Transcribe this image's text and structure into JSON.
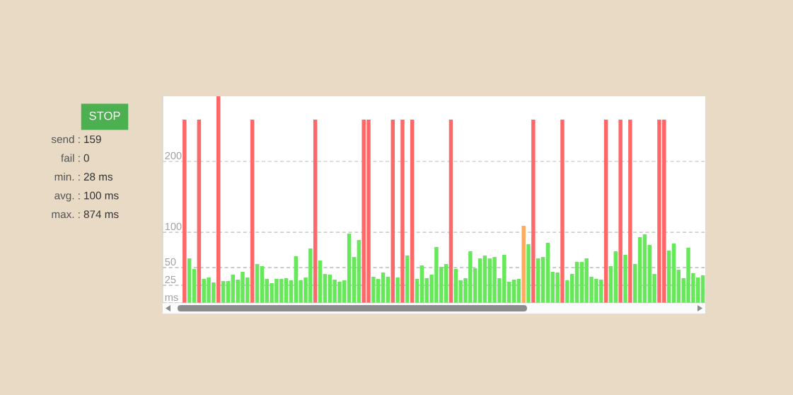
{
  "chart_data": {
    "type": "bar",
    "categories": [
      null,
      null,
      null,
      null,
      null,
      null,
      null,
      null,
      null,
      null,
      null,
      null,
      null,
      null,
      null,
      null,
      null,
      null,
      null,
      null,
      null,
      null,
      null,
      null,
      null,
      null,
      null,
      null,
      null,
      null,
      null,
      null,
      null,
      null,
      null,
      null,
      null,
      null,
      null,
      null,
      null,
      null,
      null,
      null,
      null,
      null,
      null,
      null,
      null,
      null,
      null,
      null,
      null,
      null,
      null,
      null,
      null,
      null,
      null,
      null,
      null,
      null,
      null,
      null,
      null,
      null,
      null,
      null,
      null,
      null,
      null,
      null,
      null,
      null,
      null,
      null,
      null,
      null,
      null,
      null,
      null,
      null,
      null,
      null,
      null,
      null,
      null,
      null,
      null,
      null,
      null,
      null,
      null,
      null,
      null,
      null,
      null,
      null,
      null,
      null,
      null,
      null,
      null,
      null,
      null,
      null,
      null,
      null,
      null,
      null,
      null,
      null
    ],
    "values": [
      null,
      null,
      null,
      null,
      259,
      63,
      48,
      259,
      34,
      36,
      29,
      292,
      31,
      31,
      40,
      33,
      44,
      36,
      259,
      55,
      52,
      34,
      28,
      34,
      34,
      35,
      32,
      66,
      32,
      36,
      77,
      259,
      60,
      41,
      40,
      33,
      30,
      32,
      98,
      65,
      89,
      259,
      259,
      37,
      34,
      43,
      37,
      259,
      36,
      259,
      67,
      259,
      34,
      53,
      35,
      40,
      79,
      51,
      55,
      259,
      48,
      32,
      35,
      73,
      49,
      63,
      67,
      63,
      65,
      35,
      68,
      30,
      33,
      34,
      109,
      83,
      259,
      63,
      65,
      85,
      44,
      43,
      259,
      32,
      41,
      58,
      58,
      63,
      37,
      34,
      33,
      259,
      52,
      73,
      259,
      68,
      259,
      55,
      93,
      97,
      82,
      41,
      259,
      259,
      74,
      84,
      47,
      35,
      78,
      42,
      36,
      39
    ],
    "colors": [
      "#66e85a",
      "#66e85a",
      "#66e85a",
      "#66e85a",
      "#ff6868",
      "#66e85a",
      "#66e85a",
      "#ff6868",
      "#66e85a",
      "#66e85a",
      "#66e85a",
      "#ff6868",
      "#66e85a",
      "#66e85a",
      "#66e85a",
      "#66e85a",
      "#66e85a",
      "#66e85a",
      "#ff6868",
      "#66e85a",
      "#66e85a",
      "#66e85a",
      "#66e85a",
      "#66e85a",
      "#66e85a",
      "#66e85a",
      "#66e85a",
      "#66e85a",
      "#66e85a",
      "#66e85a",
      "#66e85a",
      "#ff6868",
      "#66e85a",
      "#66e85a",
      "#66e85a",
      "#66e85a",
      "#66e85a",
      "#66e85a",
      "#66e85a",
      "#66e85a",
      "#66e85a",
      "#ff6868",
      "#ff6868",
      "#66e85a",
      "#66e85a",
      "#66e85a",
      "#66e85a",
      "#ff6868",
      "#66e85a",
      "#ff6868",
      "#66e85a",
      "#ff6868",
      "#66e85a",
      "#66e85a",
      "#66e85a",
      "#66e85a",
      "#66e85a",
      "#66e85a",
      "#66e85a",
      "#ff6868",
      "#66e85a",
      "#66e85a",
      "#66e85a",
      "#66e85a",
      "#66e85a",
      "#66e85a",
      "#66e85a",
      "#66e85a",
      "#66e85a",
      "#66e85a",
      "#66e85a",
      "#66e85a",
      "#66e85a",
      "#66e85a",
      "#ffaa5e",
      "#66e85a",
      "#ff6868",
      "#66e85a",
      "#66e85a",
      "#66e85a",
      "#66e85a",
      "#66e85a",
      "#ff6868",
      "#66e85a",
      "#66e85a",
      "#66e85a",
      "#66e85a",
      "#66e85a",
      "#66e85a",
      "#66e85a",
      "#66e85a",
      "#ff6868",
      "#66e85a",
      "#66e85a",
      "#ff6868",
      "#66e85a",
      "#ff6868",
      "#66e85a",
      "#66e85a",
      "#66e85a",
      "#66e85a",
      "#66e85a",
      "#ff6868",
      "#ff6868",
      "#66e85a",
      "#66e85a",
      "#66e85a",
      "#66e85a",
      "#66e85a",
      "#66e85a",
      "#66e85a",
      "#66e85a"
    ],
    "ylim": [
      0,
      292
    ],
    "yticks": [
      {
        "value": 0,
        "label": "ms"
      },
      25,
      50,
      100,
      200
    ],
    "grid": "y",
    "tick_labels": "y",
    "annotations": [
      "STOP",
      "send : 159",
      "fail : 0",
      "min. : 28 ms",
      "avg. : 100 ms",
      "max. : 874 ms"
    ]
  }
}
